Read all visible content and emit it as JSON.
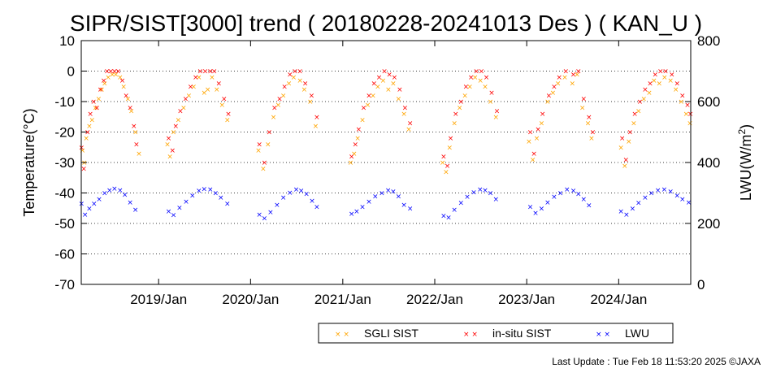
{
  "chart_data": {
    "type": "scatter",
    "title": "SIPR/SIST[3000] trend ( 20180228-20241013 Des ) ( KAN_U )",
    "ylabel": "Temperature(°C)",
    "y2label_main": "LWU(W/m",
    "y2label_sup": "2",
    "y2label_end": ")",
    "xlim": [
      "2018-02-28",
      "2024-10-13"
    ],
    "ylim": [
      -70,
      10
    ],
    "y2lim": [
      0,
      800
    ],
    "yticks": [
      10,
      0,
      -10,
      -20,
      -30,
      -40,
      -50,
      -60,
      -70
    ],
    "y2ticks": [
      800,
      600,
      400,
      200,
      0
    ],
    "xticks": [
      {
        "date": "2019-01-01",
        "label": "2019/Jan"
      },
      {
        "date": "2020-01-01",
        "label": "2020/Jan"
      },
      {
        "date": "2021-01-01",
        "label": "2021/Jan"
      },
      {
        "date": "2022-01-01",
        "label": "2022/Jan"
      },
      {
        "date": "2023-01-01",
        "label": "2023/Jan"
      },
      {
        "date": "2024-01-01",
        "label": "2024/Jan"
      }
    ],
    "grid": "horizontal dotted",
    "legend_position": "bottom-right",
    "series": [
      {
        "name": "SGLI SIST",
        "color": "#ffa500",
        "marker": "x",
        "axis": "left",
        "points": [
          [
            "2018-03-05",
            -26
          ],
          [
            "2018-03-12",
            -30
          ],
          [
            "2018-03-20",
            -22
          ],
          [
            "2018-04-01",
            -18
          ],
          [
            "2018-04-12",
            -16
          ],
          [
            "2018-04-25",
            -12
          ],
          [
            "2018-05-08",
            -9
          ],
          [
            "2018-05-20",
            -6
          ],
          [
            "2018-06-01",
            -4
          ],
          [
            "2018-06-15",
            -2
          ],
          [
            "2018-07-01",
            -1
          ],
          [
            "2018-07-15",
            -1
          ],
          [
            "2018-08-01",
            -2
          ],
          [
            "2018-08-15",
            -5
          ],
          [
            "2018-09-01",
            -9
          ],
          [
            "2018-09-15",
            -13
          ],
          [
            "2018-10-01",
            -20
          ],
          [
            "2018-10-15",
            -27
          ],
          [
            "2019-02-05",
            -24
          ],
          [
            "2019-02-15",
            -28
          ],
          [
            "2019-03-01",
            -20
          ],
          [
            "2019-03-20",
            -16
          ],
          [
            "2019-04-10",
            -12
          ],
          [
            "2019-05-01",
            -8
          ],
          [
            "2019-05-20",
            -5
          ],
          [
            "2019-06-10",
            -2
          ],
          [
            "2019-07-01",
            -7
          ],
          [
            "2019-07-15",
            -6
          ],
          [
            "2019-08-01",
            -2
          ],
          [
            "2019-08-20",
            -6
          ],
          [
            "2019-09-10",
            -11
          ],
          [
            "2019-10-01",
            -16
          ],
          [
            "2020-02-01",
            -26
          ],
          [
            "2020-02-20",
            -32
          ],
          [
            "2020-03-10",
            -24
          ],
          [
            "2020-04-01",
            -15
          ],
          [
            "2020-04-20",
            -11
          ],
          [
            "2020-05-10",
            -8
          ],
          [
            "2020-06-01",
            -4
          ],
          [
            "2020-06-20",
            -2
          ],
          [
            "2020-07-15",
            -3
          ],
          [
            "2020-08-01",
            -6
          ],
          [
            "2020-08-25",
            -10
          ],
          [
            "2020-09-15",
            -18
          ],
          [
            "2021-02-01",
            -30
          ],
          [
            "2021-02-15",
            -27
          ],
          [
            "2021-03-01",
            -22
          ],
          [
            "2021-03-20",
            -16
          ],
          [
            "2021-04-10",
            -11
          ],
          [
            "2021-05-01",
            -8
          ],
          [
            "2021-05-20",
            -5
          ],
          [
            "2021-06-10",
            -3
          ],
          [
            "2021-07-01",
            -6
          ],
          [
            "2021-07-20",
            -4
          ],
          [
            "2021-08-10",
            -9
          ],
          [
            "2021-09-01",
            -14
          ],
          [
            "2021-09-20",
            -19
          ],
          [
            "2022-02-01",
            -30
          ],
          [
            "2022-02-15",
            -33
          ],
          [
            "2022-03-01",
            -25
          ],
          [
            "2022-03-20",
            -17
          ],
          [
            "2022-04-10",
            -12
          ],
          [
            "2022-05-01",
            -8
          ],
          [
            "2022-05-20",
            -5
          ],
          [
            "2022-06-10",
            -2
          ],
          [
            "2022-07-01",
            -3
          ],
          [
            "2022-07-20",
            -5
          ],
          [
            "2022-08-10",
            -10
          ],
          [
            "2022-09-01",
            -15
          ],
          [
            "2023-01-10",
            -23
          ],
          [
            "2023-01-25",
            -29
          ],
          [
            "2023-02-10",
            -22
          ],
          [
            "2023-03-01",
            -17
          ],
          [
            "2023-03-25",
            -10
          ],
          [
            "2023-04-15",
            -7
          ],
          [
            "2023-05-05",
            -4
          ],
          [
            "2023-06-01",
            -2
          ],
          [
            "2023-07-01",
            -4
          ],
          [
            "2023-07-20",
            -1
          ],
          [
            "2023-08-10",
            -12
          ],
          [
            "2023-09-01",
            -17
          ],
          [
            "2023-09-15",
            -22
          ],
          [
            "2024-01-10",
            -25
          ],
          [
            "2024-01-25",
            -31
          ],
          [
            "2024-02-10",
            -23
          ],
          [
            "2024-03-01",
            -17
          ],
          [
            "2024-03-20",
            -13
          ],
          [
            "2024-04-10",
            -9
          ],
          [
            "2024-05-01",
            -7
          ],
          [
            "2024-05-20",
            -3
          ],
          [
            "2024-06-10",
            -4
          ],
          [
            "2024-07-01",
            -2
          ],
          [
            "2024-07-25",
            -3
          ],
          [
            "2024-08-15",
            -6
          ],
          [
            "2024-09-05",
            -10
          ],
          [
            "2024-09-25",
            -14
          ],
          [
            "2024-10-10",
            -17
          ]
        ]
      },
      {
        "name": "in-situ SIST",
        "color": "#ff0000",
        "marker": "x",
        "axis": "left",
        "points": [
          [
            "2018-03-01",
            -25
          ],
          [
            "2018-03-10",
            -32
          ],
          [
            "2018-03-25",
            -20
          ],
          [
            "2018-04-05",
            -14
          ],
          [
            "2018-04-18",
            -10
          ],
          [
            "2018-05-01",
            -12
          ],
          [
            "2018-05-15",
            -6
          ],
          [
            "2018-05-28",
            -3
          ],
          [
            "2018-06-10",
            0
          ],
          [
            "2018-06-25",
            0
          ],
          [
            "2018-07-10",
            0
          ],
          [
            "2018-07-25",
            0
          ],
          [
            "2018-08-10",
            -3
          ],
          [
            "2018-08-25",
            -8
          ],
          [
            "2018-09-10",
            -12
          ],
          [
            "2018-09-25",
            -18
          ],
          [
            "2018-10-05",
            -24
          ],
          [
            "2019-02-10",
            -22
          ],
          [
            "2019-02-25",
            -26
          ],
          [
            "2019-03-10",
            -18
          ],
          [
            "2019-03-28",
            -13
          ],
          [
            "2019-04-18",
            -9
          ],
          [
            "2019-05-08",
            -5
          ],
          [
            "2019-05-28",
            -2
          ],
          [
            "2019-06-15",
            0
          ],
          [
            "2019-07-05",
            0
          ],
          [
            "2019-07-25",
            0
          ],
          [
            "2019-08-10",
            0
          ],
          [
            "2019-08-28",
            -4
          ],
          [
            "2019-09-18",
            -9
          ],
          [
            "2019-10-05",
            -14
          ],
          [
            "2020-02-05",
            -24
          ],
          [
            "2020-02-25",
            -30
          ],
          [
            "2020-03-15",
            -20
          ],
          [
            "2020-04-05",
            -12
          ],
          [
            "2020-04-25",
            -9
          ],
          [
            "2020-05-15",
            -5
          ],
          [
            "2020-06-05",
            -1
          ],
          [
            "2020-06-25",
            0
          ],
          [
            "2020-07-15",
            0
          ],
          [
            "2020-08-05",
            -4
          ],
          [
            "2020-08-30",
            -8
          ],
          [
            "2020-09-20",
            -15
          ],
          [
            "2021-02-05",
            -28
          ],
          [
            "2021-02-20",
            -24
          ],
          [
            "2021-03-05",
            -19
          ],
          [
            "2021-03-25",
            -12
          ],
          [
            "2021-04-15",
            -8
          ],
          [
            "2021-05-05",
            -4
          ],
          [
            "2021-05-25",
            -2
          ],
          [
            "2021-06-15",
            0
          ],
          [
            "2021-07-05",
            -1
          ],
          [
            "2021-07-25",
            -2
          ],
          [
            "2021-08-15",
            -6
          ],
          [
            "2021-09-05",
            -12
          ],
          [
            "2021-09-25",
            -17
          ],
          [
            "2022-02-05",
            -28
          ],
          [
            "2022-02-20",
            -31
          ],
          [
            "2022-03-05",
            -22
          ],
          [
            "2022-03-25",
            -14
          ],
          [
            "2022-04-15",
            -10
          ],
          [
            "2022-05-05",
            -5
          ],
          [
            "2022-05-25",
            -2
          ],
          [
            "2022-06-15",
            0
          ],
          [
            "2022-07-05",
            0
          ],
          [
            "2022-07-25",
            -2
          ],
          [
            "2022-08-15",
            -7
          ],
          [
            "2022-09-05",
            -13
          ],
          [
            "2023-01-15",
            -20
          ],
          [
            "2023-01-30",
            -27
          ],
          [
            "2023-02-15",
            -19
          ],
          [
            "2023-03-05",
            -14
          ],
          [
            "2023-03-30",
            -8
          ],
          [
            "2023-04-20",
            -5
          ],
          [
            "2023-05-10",
            -2
          ],
          [
            "2023-06-05",
            0
          ],
          [
            "2023-07-05",
            -1
          ],
          [
            "2023-07-25",
            0
          ],
          [
            "2023-08-15",
            -9
          ],
          [
            "2023-09-05",
            -15
          ],
          [
            "2023-09-20",
            -20
          ],
          [
            "2024-01-15",
            -22
          ],
          [
            "2024-01-30",
            -29
          ],
          [
            "2024-02-15",
            -20
          ],
          [
            "2024-03-05",
            -14
          ],
          [
            "2024-03-25",
            -10
          ],
          [
            "2024-04-15",
            -6
          ],
          [
            "2024-05-05",
            -4
          ],
          [
            "2024-05-25",
            -1
          ],
          [
            "2024-06-15",
            0
          ],
          [
            "2024-07-05",
            0
          ],
          [
            "2024-07-30",
            -1
          ],
          [
            "2024-08-20",
            -4
          ],
          [
            "2024-09-10",
            -8
          ],
          [
            "2024-09-30",
            -11
          ],
          [
            "2024-10-12",
            -14
          ]
        ]
      },
      {
        "name": "LWU",
        "color": "#0000ff",
        "marker": "x",
        "axis": "right",
        "points": [
          [
            "2018-03-01",
            265
          ],
          [
            "2018-03-15",
            230
          ],
          [
            "2018-04-01",
            250
          ],
          [
            "2018-04-20",
            265
          ],
          [
            "2018-05-10",
            280
          ],
          [
            "2018-06-01",
            300
          ],
          [
            "2018-06-20",
            310
          ],
          [
            "2018-07-10",
            315
          ],
          [
            "2018-08-01",
            310
          ],
          [
            "2018-08-20",
            295
          ],
          [
            "2018-09-10",
            270
          ],
          [
            "2018-10-01",
            245
          ],
          [
            "2019-02-10",
            240
          ],
          [
            "2019-03-01",
            228
          ],
          [
            "2019-03-25",
            252
          ],
          [
            "2019-04-20",
            272
          ],
          [
            "2019-05-15",
            292
          ],
          [
            "2019-06-10",
            308
          ],
          [
            "2019-07-01",
            314
          ],
          [
            "2019-07-25",
            312
          ],
          [
            "2019-08-15",
            300
          ],
          [
            "2019-09-05",
            285
          ],
          [
            "2019-10-01",
            265
          ],
          [
            "2020-02-05",
            230
          ],
          [
            "2020-02-25",
            218
          ],
          [
            "2020-03-20",
            238
          ],
          [
            "2020-04-15",
            262
          ],
          [
            "2020-05-10",
            285
          ],
          [
            "2020-06-05",
            302
          ],
          [
            "2020-06-30",
            312
          ],
          [
            "2020-07-20",
            308
          ],
          [
            "2020-08-10",
            298
          ],
          [
            "2020-09-01",
            275
          ],
          [
            "2020-09-20",
            255
          ],
          [
            "2021-02-05",
            232
          ],
          [
            "2021-02-25",
            240
          ],
          [
            "2021-03-20",
            255
          ],
          [
            "2021-04-15",
            272
          ],
          [
            "2021-05-10",
            290
          ],
          [
            "2021-06-05",
            300
          ],
          [
            "2021-06-30",
            310
          ],
          [
            "2021-07-20",
            305
          ],
          [
            "2021-08-10",
            290
          ],
          [
            "2021-09-01",
            262
          ],
          [
            "2021-09-25",
            250
          ],
          [
            "2022-02-05",
            225
          ],
          [
            "2022-02-25",
            220
          ],
          [
            "2022-03-20",
            245
          ],
          [
            "2022-04-15",
            268
          ],
          [
            "2022-05-10",
            288
          ],
          [
            "2022-06-05",
            303
          ],
          [
            "2022-06-30",
            312
          ],
          [
            "2022-07-20",
            310
          ],
          [
            "2022-08-10",
            300
          ],
          [
            "2022-09-01",
            280
          ],
          [
            "2023-01-15",
            255
          ],
          [
            "2023-02-05",
            235
          ],
          [
            "2023-03-01",
            250
          ],
          [
            "2023-03-25",
            270
          ],
          [
            "2023-04-20",
            288
          ],
          [
            "2023-05-15",
            300
          ],
          [
            "2023-06-10",
            312
          ],
          [
            "2023-07-05",
            308
          ],
          [
            "2023-07-25",
            298
          ],
          [
            "2023-08-15",
            280
          ],
          [
            "2023-09-05",
            260
          ],
          [
            "2024-01-10",
            240
          ],
          [
            "2024-02-01",
            230
          ],
          [
            "2024-02-25",
            250
          ],
          [
            "2024-03-20",
            268
          ],
          [
            "2024-04-15",
            285
          ],
          [
            "2024-05-10",
            300
          ],
          [
            "2024-06-05",
            310
          ],
          [
            "2024-06-30",
            312
          ],
          [
            "2024-07-25",
            305
          ],
          [
            "2024-08-20",
            292
          ],
          [
            "2024-09-10",
            280
          ],
          [
            "2024-10-05",
            270
          ]
        ]
      }
    ]
  },
  "footer": {
    "last_update": "Last Update : Tue Feb 18 11:53:20 2025  ©JAXA"
  }
}
